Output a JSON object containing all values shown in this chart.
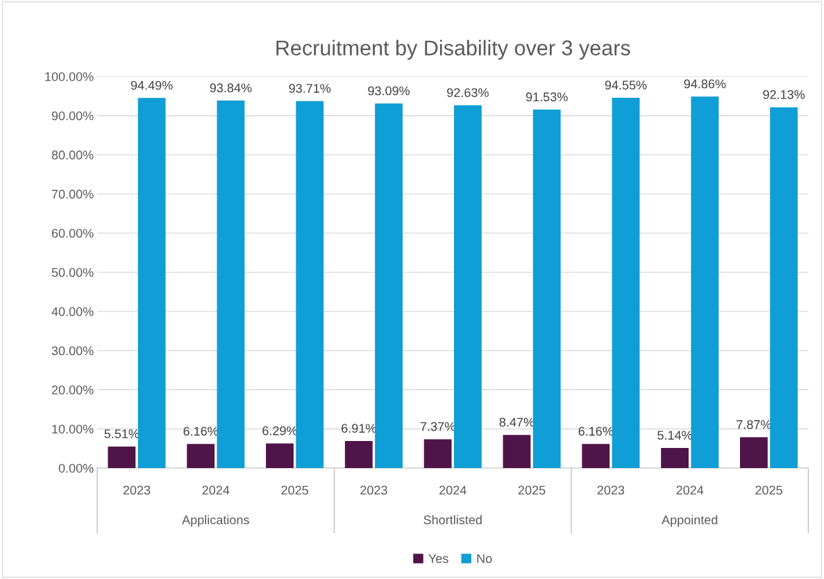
{
  "chart_data": {
    "type": "bar",
    "title": "Recruitment by Disability over 3 years",
    "categories": [
      "2023",
      "2024",
      "2025",
      "2023",
      "2024",
      "2025",
      "2023",
      "2024",
      "2025"
    ],
    "annotations": [
      "Applications",
      "Shortlisted",
      "Appointed"
    ],
    "series": [
      {
        "name": "Yes",
        "color": "#4f1548",
        "values": [
          5.51,
          6.16,
          6.29,
          6.91,
          7.37,
          8.47,
          6.16,
          5.14,
          7.87
        ],
        "value_labels": [
          "5.51%",
          "6.16%",
          "6.29%",
          "6.91%",
          "7.37%",
          "8.47%",
          "6.16%",
          "5.14%",
          "7.87%"
        ]
      },
      {
        "name": "No",
        "color": "#0f9ed5",
        "values": [
          94.49,
          93.84,
          93.71,
          93.09,
          92.63,
          91.53,
          94.55,
          94.86,
          92.13
        ],
        "value_labels": [
          "94.49%",
          "93.84%",
          "93.71%",
          "93.09%",
          "92.63%",
          "91.53%",
          "94.55%",
          "94.86%",
          "92.13%"
        ]
      }
    ],
    "ylim": [
      0,
      100
    ],
    "yticks": [
      {
        "value": 0,
        "label": "0.00%"
      },
      {
        "value": 10,
        "label": "10.00%"
      },
      {
        "value": 20,
        "label": "20.00%"
      },
      {
        "value": 30,
        "label": "30.00%"
      },
      {
        "value": 40,
        "label": "40.00%"
      },
      {
        "value": 50,
        "label": "50.00%"
      },
      {
        "value": 60,
        "label": "60.00%"
      },
      {
        "value": 70,
        "label": "70.00%"
      },
      {
        "value": 80,
        "label": "80.00%"
      },
      {
        "value": 90,
        "label": "90.00%"
      },
      {
        "value": 100,
        "label": "100.00%"
      }
    ],
    "grid": "y",
    "legend": "bottom"
  }
}
